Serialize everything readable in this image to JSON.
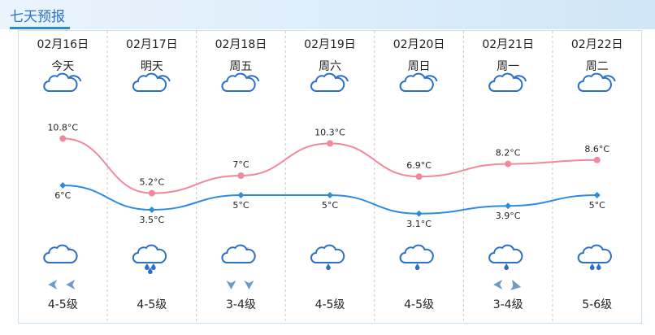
{
  "header": {
    "title": "七天预报"
  },
  "days": [
    {
      "date": "02月16日",
      "name": "今天",
      "wind": "4-5级"
    },
    {
      "date": "02月17日",
      "name": "明天",
      "wind": "4-5级"
    },
    {
      "date": "02月18日",
      "name": "周五",
      "wind": "3-4级"
    },
    {
      "date": "02月19日",
      "name": "周六",
      "wind": "4-5级"
    },
    {
      "date": "02月20日",
      "name": "周日",
      "wind": "4-5级"
    },
    {
      "date": "02月21日",
      "name": "周一",
      "wind": "3-4级"
    },
    {
      "date": "02月22日",
      "name": "周二",
      "wind": "5-6级"
    }
  ],
  "chart_data": {
    "type": "line",
    "categories": [
      "02月16日",
      "02月17日",
      "02月18日",
      "02月19日",
      "02月20日",
      "02月21日",
      "02月22日"
    ],
    "series": [
      {
        "name": "high",
        "color": "#f0899c",
        "values": [
          10.8,
          5.2,
          7,
          10.3,
          6.9,
          8.2,
          8.6
        ],
        "value_labels": [
          "10.8°C",
          "5.2°C",
          "7°C",
          "10.3°C",
          "6.9°C",
          "8.2°C",
          "8.6°C"
        ]
      },
      {
        "name": "low",
        "color": "#2d8be0",
        "values": [
          6,
          3.5,
          5,
          5,
          3.1,
          3.9,
          5
        ],
        "value_labels": [
          "6°C",
          "3.5°C",
          "5°C",
          "5°C",
          "3.1°C",
          "3.9°C",
          "5°C"
        ]
      }
    ]
  }
}
